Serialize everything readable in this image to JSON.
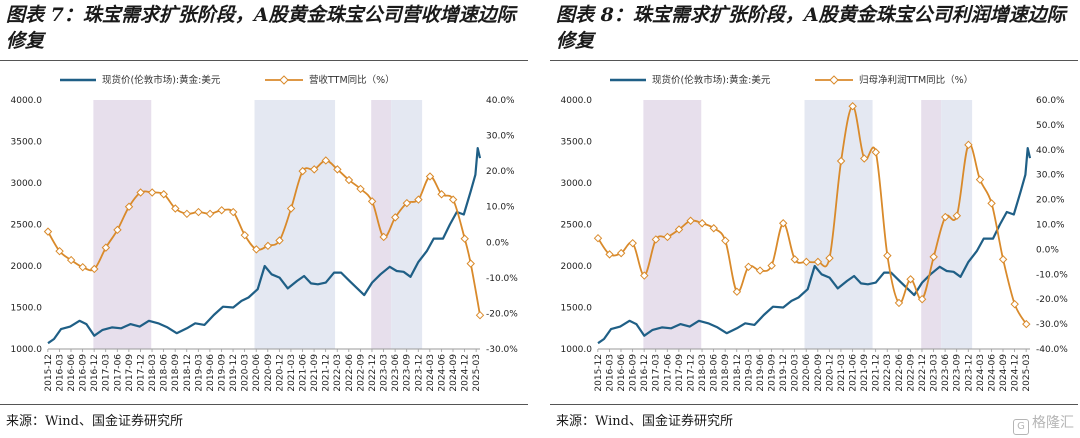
{
  "watermark": {
    "text": "格隆汇",
    "icon": "G"
  },
  "charts": [
    {
      "title": "图表 7：珠宝需求扩张阶段，A股黄金珠宝公司营收增速边际修复",
      "source": "来源：Wind、国金证券研究所",
      "chart_data": {
        "type": "line",
        "left_axis": {
          "ticks": [
            "1000.0",
            "1500.0",
            "2000.0",
            "2500.0",
            "3000.0",
            "3500.0",
            "4000.0"
          ],
          "range": [
            1000,
            4000
          ]
        },
        "right_axis": {
          "ticks": [
            "-30.0%",
            "-20.0%",
            "-10.0%",
            "0.0%",
            "10.0%",
            "20.0%",
            "30.0%",
            "40.0%"
          ],
          "range": [
            -30,
            40
          ]
        },
        "x_ticks": [
          "2015-12",
          "2016-03",
          "2016-06",
          "2016-09",
          "2016-12",
          "2017-03",
          "2017-06",
          "2017-09",
          "2017-12",
          "2018-03",
          "2018-06",
          "2018-09",
          "2018-12",
          "2019-03",
          "2019-06",
          "2019-09",
          "2019-12",
          "2020-03",
          "2020-06",
          "2020-09",
          "2020-12",
          "2021-03",
          "2021-06",
          "2021-09",
          "2021-12",
          "2022-03",
          "2022-06",
          "2022-09",
          "2022-12",
          "2023-03",
          "2023-06",
          "2023-09",
          "2023-12",
          "2024-03",
          "2024-06",
          "2024-09",
          "2024-12",
          "2025-03"
        ],
        "x_range": [
          2015.92,
          2025.25
        ],
        "shaded_periods": [
          {
            "start": 2016.9,
            "end": 2018.15,
            "color": "#e7dfec"
          },
          {
            "start": 2020.38,
            "end": 2022.12,
            "color": "#e4e8f2"
          },
          {
            "start": 2022.9,
            "end": 2023.33,
            "color": "#e7dfec"
          },
          {
            "start": 2023.33,
            "end": 2024.0,
            "color": "#e4e8f2"
          }
        ],
        "gold_series": {
          "name": "现货价(伦敦市场):黄金:美元",
          "color": "#1f5f86",
          "axis": "left",
          "points": [
            [
              2015.92,
              1070
            ],
            [
              2016.05,
              1120
            ],
            [
              2016.2,
              1240
            ],
            [
              2016.4,
              1270
            ],
            [
              2016.6,
              1340
            ],
            [
              2016.75,
              1300
            ],
            [
              2016.92,
              1160
            ],
            [
              2017.1,
              1230
            ],
            [
              2017.3,
              1260
            ],
            [
              2017.5,
              1250
            ],
            [
              2017.7,
              1300
            ],
            [
              2017.9,
              1270
            ],
            [
              2018.1,
              1340
            ],
            [
              2018.3,
              1310
            ],
            [
              2018.5,
              1260
            ],
            [
              2018.7,
              1190
            ],
            [
              2018.92,
              1250
            ],
            [
              2019.1,
              1310
            ],
            [
              2019.3,
              1290
            ],
            [
              2019.5,
              1410
            ],
            [
              2019.7,
              1510
            ],
            [
              2019.92,
              1500
            ],
            [
              2020.1,
              1580
            ],
            [
              2020.25,
              1620
            ],
            [
              2020.45,
              1720
            ],
            [
              2020.6,
              2000
            ],
            [
              2020.75,
              1900
            ],
            [
              2020.92,
              1860
            ],
            [
              2021.1,
              1730
            ],
            [
              2021.3,
              1820
            ],
            [
              2021.45,
              1880
            ],
            [
              2021.6,
              1790
            ],
            [
              2021.75,
              1780
            ],
            [
              2021.92,
              1800
            ],
            [
              2022.1,
              1920
            ],
            [
              2022.25,
              1920
            ],
            [
              2022.45,
              1810
            ],
            [
              2022.6,
              1730
            ],
            [
              2022.75,
              1650
            ],
            [
              2022.92,
              1800
            ],
            [
              2023.1,
              1900
            ],
            [
              2023.3,
              1990
            ],
            [
              2023.45,
              1940
            ],
            [
              2023.6,
              1930
            ],
            [
              2023.75,
              1870
            ],
            [
              2023.92,
              2050
            ],
            [
              2024.1,
              2180
            ],
            [
              2024.25,
              2330
            ],
            [
              2024.45,
              2330
            ],
            [
              2024.6,
              2500
            ],
            [
              2024.75,
              2650
            ],
            [
              2024.9,
              2620
            ],
            [
              2025.05,
              2900
            ],
            [
              2025.15,
              3100
            ],
            [
              2025.2,
              3420
            ],
            [
              2025.25,
              3300
            ]
          ]
        },
        "growth_series": {
          "name": "营收TTM同比（%）",
          "color": "#d98a2b",
          "axis": "right",
          "marker": "diamond",
          "points": [
            [
              2015.92,
              3
            ],
            [
              2016.17,
              -2.5
            ],
            [
              2016.42,
              -5
            ],
            [
              2016.67,
              -7
            ],
            [
              2016.92,
              -7.5
            ],
            [
              2017.17,
              -1.5
            ],
            [
              2017.42,
              3.5
            ],
            [
              2017.67,
              10
            ],
            [
              2017.92,
              14
            ],
            [
              2018.17,
              14
            ],
            [
              2018.42,
              13.5
            ],
            [
              2018.67,
              9.5
            ],
            [
              2018.92,
              8
            ],
            [
              2019.17,
              8.5
            ],
            [
              2019.42,
              8
            ],
            [
              2019.67,
              9
            ],
            [
              2019.92,
              8.5
            ],
            [
              2020.17,
              2
            ],
            [
              2020.42,
              -2
            ],
            [
              2020.67,
              -1
            ],
            [
              2020.92,
              0.5
            ],
            [
              2021.17,
              9.5
            ],
            [
              2021.42,
              20
            ],
            [
              2021.67,
              20.5
            ],
            [
              2021.92,
              23
            ],
            [
              2022.17,
              20.5
            ],
            [
              2022.42,
              17.5
            ],
            [
              2022.67,
              15
            ],
            [
              2022.92,
              11.5
            ],
            [
              2023.17,
              1.5
            ],
            [
              2023.42,
              7
            ],
            [
              2023.67,
              11
            ],
            [
              2023.92,
              12
            ],
            [
              2024.17,
              18.5
            ],
            [
              2024.42,
              13.5
            ],
            [
              2024.67,
              12
            ],
            [
              2024.92,
              1
            ],
            [
              2025.05,
              -6
            ],
            [
              2025.25,
              -20.5
            ]
          ]
        }
      }
    },
    {
      "title": "图表 8：珠宝需求扩张阶段，A股黄金珠宝公司利润增速边际修复",
      "source": "来源：Wind、国金证券研究所",
      "chart_data": {
        "type": "line",
        "left_axis": {
          "ticks": [
            "1000.0",
            "1500.0",
            "2000.0",
            "2500.0",
            "3000.0",
            "3500.0",
            "4000.0"
          ],
          "range": [
            1000,
            4000
          ]
        },
        "right_axis": {
          "ticks": [
            "-40.0%",
            "-30.0%",
            "-20.0%",
            "-10.0%",
            "0.0%",
            "10.0%",
            "20.0%",
            "30.0%",
            "40.0%",
            "50.0%",
            "60.0%"
          ],
          "range": [
            -40,
            60
          ]
        },
        "x_ticks": [
          "2015-12",
          "2016-06",
          "2016-12",
          "2017-06",
          "2017-12",
          "2018-06",
          "2018-12",
          "2019-06",
          "2019-12",
          "2020-06",
          "2020-12",
          "2021-06",
          "2021-12",
          "2022-06",
          "2022-12",
          "2023-06",
          "2023-12",
          "2024-06",
          "2024-12",
          "2025-03"
        ],
        "x_ticks_alt": [
          "2016-03",
          "2016-09",
          "2017-03",
          "2017-09",
          "2018-03",
          "2018-09",
          "2019-03",
          "2019-09",
          "2020-03",
          "2020-09",
          "2021-03",
          "2021-09",
          "2022-03",
          "2022-09",
          "2023-03",
          "2023-09",
          "2024-03",
          "2024-09"
        ],
        "x_range": [
          2015.92,
          2025.25
        ],
        "shaded_periods": [
          {
            "start": 2016.9,
            "end": 2018.15,
            "color": "#e7dfec"
          },
          {
            "start": 2020.38,
            "end": 2021.85,
            "color": "#e4e8f2"
          },
          {
            "start": 2022.9,
            "end": 2023.33,
            "color": "#e7dfec"
          },
          {
            "start": 2023.33,
            "end": 2024.0,
            "color": "#e4e8f2"
          }
        ],
        "gold_series": {
          "name": "现货价(伦敦市场):黄金:美元",
          "color": "#1f5f86",
          "axis": "left",
          "points": [
            [
              2015.92,
              1070
            ],
            [
              2016.05,
              1120
            ],
            [
              2016.2,
              1240
            ],
            [
              2016.4,
              1270
            ],
            [
              2016.6,
              1340
            ],
            [
              2016.75,
              1300
            ],
            [
              2016.92,
              1160
            ],
            [
              2017.1,
              1230
            ],
            [
              2017.3,
              1260
            ],
            [
              2017.5,
              1250
            ],
            [
              2017.7,
              1300
            ],
            [
              2017.9,
              1270
            ],
            [
              2018.1,
              1340
            ],
            [
              2018.3,
              1310
            ],
            [
              2018.5,
              1260
            ],
            [
              2018.7,
              1190
            ],
            [
              2018.92,
              1250
            ],
            [
              2019.1,
              1310
            ],
            [
              2019.3,
              1290
            ],
            [
              2019.5,
              1410
            ],
            [
              2019.7,
              1510
            ],
            [
              2019.92,
              1500
            ],
            [
              2020.1,
              1580
            ],
            [
              2020.25,
              1620
            ],
            [
              2020.45,
              1720
            ],
            [
              2020.6,
              2000
            ],
            [
              2020.75,
              1900
            ],
            [
              2020.92,
              1860
            ],
            [
              2021.1,
              1730
            ],
            [
              2021.3,
              1820
            ],
            [
              2021.45,
              1880
            ],
            [
              2021.6,
              1790
            ],
            [
              2021.75,
              1780
            ],
            [
              2021.92,
              1800
            ],
            [
              2022.1,
              1920
            ],
            [
              2022.25,
              1920
            ],
            [
              2022.45,
              1810
            ],
            [
              2022.6,
              1730
            ],
            [
              2022.75,
              1650
            ],
            [
              2022.92,
              1800
            ],
            [
              2023.1,
              1900
            ],
            [
              2023.3,
              1990
            ],
            [
              2023.45,
              1940
            ],
            [
              2023.6,
              1930
            ],
            [
              2023.75,
              1870
            ],
            [
              2023.92,
              2050
            ],
            [
              2024.1,
              2180
            ],
            [
              2024.25,
              2330
            ],
            [
              2024.45,
              2330
            ],
            [
              2024.6,
              2500
            ],
            [
              2024.75,
              2650
            ],
            [
              2024.9,
              2620
            ],
            [
              2025.05,
              2900
            ],
            [
              2025.15,
              3100
            ],
            [
              2025.2,
              3420
            ],
            [
              2025.25,
              3300
            ]
          ]
        },
        "growth_series": {
          "name": "归母净利润TTM同比（%）",
          "color": "#d98a2b",
          "axis": "right",
          "marker": "diamond",
          "points": [
            [
              2015.92,
              4.5
            ],
            [
              2016.17,
              -2
            ],
            [
              2016.42,
              -1.5
            ],
            [
              2016.67,
              2.5
            ],
            [
              2016.92,
              -10.5
            ],
            [
              2017.17,
              4
            ],
            [
              2017.42,
              5
            ],
            [
              2017.67,
              8
            ],
            [
              2017.92,
              11.5
            ],
            [
              2018.17,
              10.5
            ],
            [
              2018.42,
              8.5
            ],
            [
              2018.67,
              3.5
            ],
            [
              2018.92,
              -17
            ],
            [
              2019.17,
              -7
            ],
            [
              2019.42,
              -8.5
            ],
            [
              2019.67,
              -6.5
            ],
            [
              2019.92,
              10.5
            ],
            [
              2020.17,
              -4
            ],
            [
              2020.42,
              -5
            ],
            [
              2020.67,
              -5
            ],
            [
              2020.92,
              -3.5
            ],
            [
              2021.17,
              35.5
            ],
            [
              2021.42,
              57.5
            ],
            [
              2021.67,
              36.5
            ],
            [
              2021.92,
              39
            ],
            [
              2022.17,
              -2.5
            ],
            [
              2022.42,
              -21.5
            ],
            [
              2022.67,
              -12
            ],
            [
              2022.92,
              -20
            ],
            [
              2023.17,
              -3
            ],
            [
              2023.42,
              13
            ],
            [
              2023.67,
              13.5
            ],
            [
              2023.92,
              42
            ],
            [
              2024.17,
              28
            ],
            [
              2024.42,
              18.5
            ],
            [
              2024.67,
              -4
            ],
            [
              2024.92,
              -22
            ],
            [
              2025.17,
              -30
            ]
          ]
        }
      }
    }
  ]
}
